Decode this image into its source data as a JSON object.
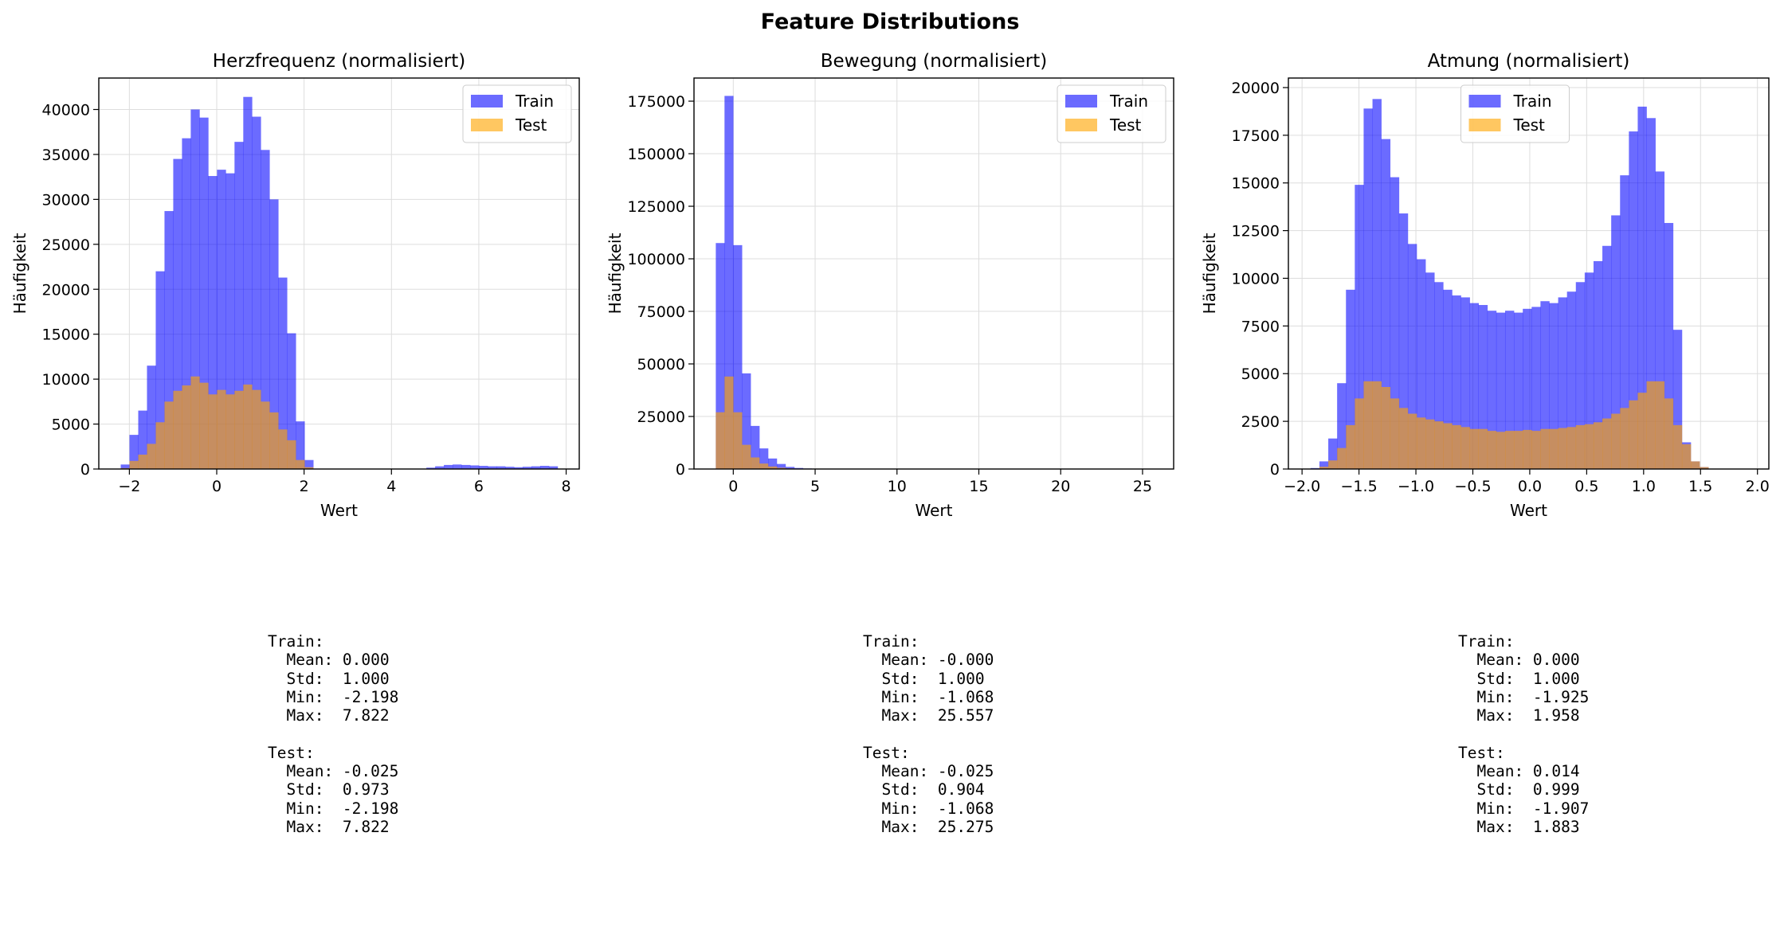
{
  "figure": {
    "title": "Feature Distributions"
  },
  "colors": {
    "train": "#0000ff",
    "test": "#ffa500",
    "grid": "#dddddd"
  },
  "chart_data": [
    {
      "type": "bar",
      "title": "Herzfrequenz (normalisiert)",
      "xlabel": "Wert",
      "ylabel": "Häufigkeit",
      "xlim": [
        -2.7,
        8.3
      ],
      "ylim": [
        0,
        43500
      ],
      "xticks": [
        -2,
        0,
        2,
        4,
        6,
        8
      ],
      "yticks": [
        0,
        5000,
        10000,
        15000,
        20000,
        25000,
        30000,
        35000,
        40000
      ],
      "grid": true,
      "legend_position": "top-right",
      "bin_start": -2.198,
      "bin_width": 0.2004,
      "series": [
        {
          "name": "Train",
          "values": [
            500,
            3800,
            6500,
            11500,
            22000,
            28700,
            34500,
            36800,
            40000,
            39100,
            32600,
            33300,
            32900,
            36400,
            41400,
            39200,
            35500,
            30000,
            21300,
            15100,
            5300,
            1000,
            0,
            0,
            0,
            0,
            0,
            0,
            0,
            0,
            0,
            0,
            0,
            0,
            0,
            0,
            0,
            0,
            0,
            0,
            0,
            0,
            0,
            0,
            0,
            0,
            0,
            0,
            0,
            0,
            0,
            0,
            0,
            0,
            0,
            0,
            0,
            0,
            0,
            0,
            0,
            0,
            0,
            0,
            0,
            0,
            0,
            0,
            0,
            0,
            0,
            0,
            0,
            0,
            0,
            0,
            0,
            0,
            0,
            0,
            0,
            0,
            0,
            0,
            0,
            0,
            0,
            0,
            0,
            0,
            0,
            0,
            0,
            0,
            0,
            0,
            0,
            0,
            0,
            0,
            0,
            0,
            0,
            0,
            0,
            0,
            0,
            0,
            0,
            0,
            0,
            0,
            0,
            0,
            0,
            0,
            0,
            0
          ]
        },
        {
          "name": "Test",
          "values": [
            100,
            900,
            1600,
            2800,
            5200,
            7500,
            8700,
            9300,
            10300,
            9600,
            8300,
            8800,
            8300,
            8700,
            9400,
            8800,
            7500,
            6300,
            4400,
            3200,
            1000,
            200
          ]
        }
      ],
      "tail_train": {
        "bin_start": 4.8,
        "values": [
          150,
          300,
          450,
          500,
          450,
          400,
          350,
          300,
          300,
          250,
          200,
          250,
          300,
          350,
          300
        ]
      }
    },
    {
      "type": "bar",
      "title": "Bewegung (normalisiert)",
      "xlabel": "Wert",
      "ylabel": "Häufigkeit",
      "xlim": [
        -2.4,
        26.9
      ],
      "ylim": [
        0,
        186000
      ],
      "xticks": [
        0,
        5,
        10,
        15,
        20,
        25
      ],
      "yticks": [
        0,
        25000,
        50000,
        75000,
        100000,
        125000,
        150000,
        175000
      ],
      "grid": true,
      "legend_position": "top-right",
      "bin_start": -1.068,
      "bin_width": 0.5325,
      "series": [
        {
          "name": "Train",
          "values": [
            107500,
            177500,
            106500,
            45500,
            20500,
            9800,
            5000,
            2400,
            1000,
            500,
            250,
            150,
            100,
            80,
            60,
            40,
            30,
            20,
            15,
            10
          ]
        },
        {
          "name": "Test",
          "values": [
            27000,
            44000,
            27000,
            11500,
            5500,
            2600,
            1200,
            600,
            250,
            100
          ]
        }
      ]
    },
    {
      "type": "bar",
      "title": "Atmung (normalisiert)",
      "xlabel": "Wert",
      "ylabel": "Häufigkeit",
      "xlim": [
        -2.12,
        2.1
      ],
      "ylim": [
        0,
        20500
      ],
      "xticks": [
        -2.0,
        -1.5,
        -1.0,
        -0.5,
        0.0,
        0.5,
        1.0,
        1.5,
        2.0
      ],
      "yticks": [
        0,
        2500,
        5000,
        7500,
        10000,
        12500,
        15000,
        17500,
        20000
      ],
      "grid": true,
      "legend_position": "top-center",
      "bin_start": -1.925,
      "bin_width": 0.07766,
      "series": [
        {
          "name": "Train",
          "values": [
            50,
            400,
            1600,
            4500,
            9400,
            14900,
            18900,
            19400,
            17300,
            15300,
            13400,
            11800,
            11000,
            10300,
            9800,
            9400,
            9100,
            9000,
            8700,
            8600,
            8300,
            8200,
            8300,
            8200,
            8400,
            8500,
            8800,
            8700,
            9000,
            9300,
            9800,
            10300,
            10900,
            11700,
            13300,
            15400,
            17700,
            19000,
            18400,
            15600,
            12900,
            7300,
            1400,
            400,
            100
          ]
        },
        {
          "name": "Test",
          "values": [
            20,
            120,
            450,
            1100,
            2300,
            3700,
            4600,
            4600,
            4300,
            3700,
            3200,
            2900,
            2700,
            2600,
            2500,
            2400,
            2300,
            2200,
            2100,
            2100,
            2000,
            1950,
            2000,
            2000,
            2050,
            2000,
            2100,
            2100,
            2150,
            2200,
            2300,
            2350,
            2450,
            2650,
            2900,
            3200,
            3600,
            4000,
            4600,
            4600,
            3700,
            2300,
            1300,
            400,
            100
          ]
        }
      ]
    }
  ],
  "stats": [
    {
      "text": "Train:\n  Mean: 0.000\n  Std:  1.000\n  Min:  -2.198\n  Max:  7.822\n\nTest:\n  Mean: -0.025\n  Std:  0.973\n  Min:  -2.198\n  Max:  7.822"
    },
    {
      "text": "Train:\n  Mean: -0.000\n  Std:  1.000\n  Min:  -1.068\n  Max:  25.557\n\nTest:\n  Mean: -0.025\n  Std:  0.904\n  Min:  -1.068\n  Max:  25.275"
    },
    {
      "text": "Train:\n  Mean: 0.000\n  Std:  1.000\n  Min:  -1.925\n  Max:  1.958\n\nTest:\n  Mean: 0.014\n  Std:  0.999\n  Min:  -1.907\n  Max:  1.883"
    }
  ]
}
